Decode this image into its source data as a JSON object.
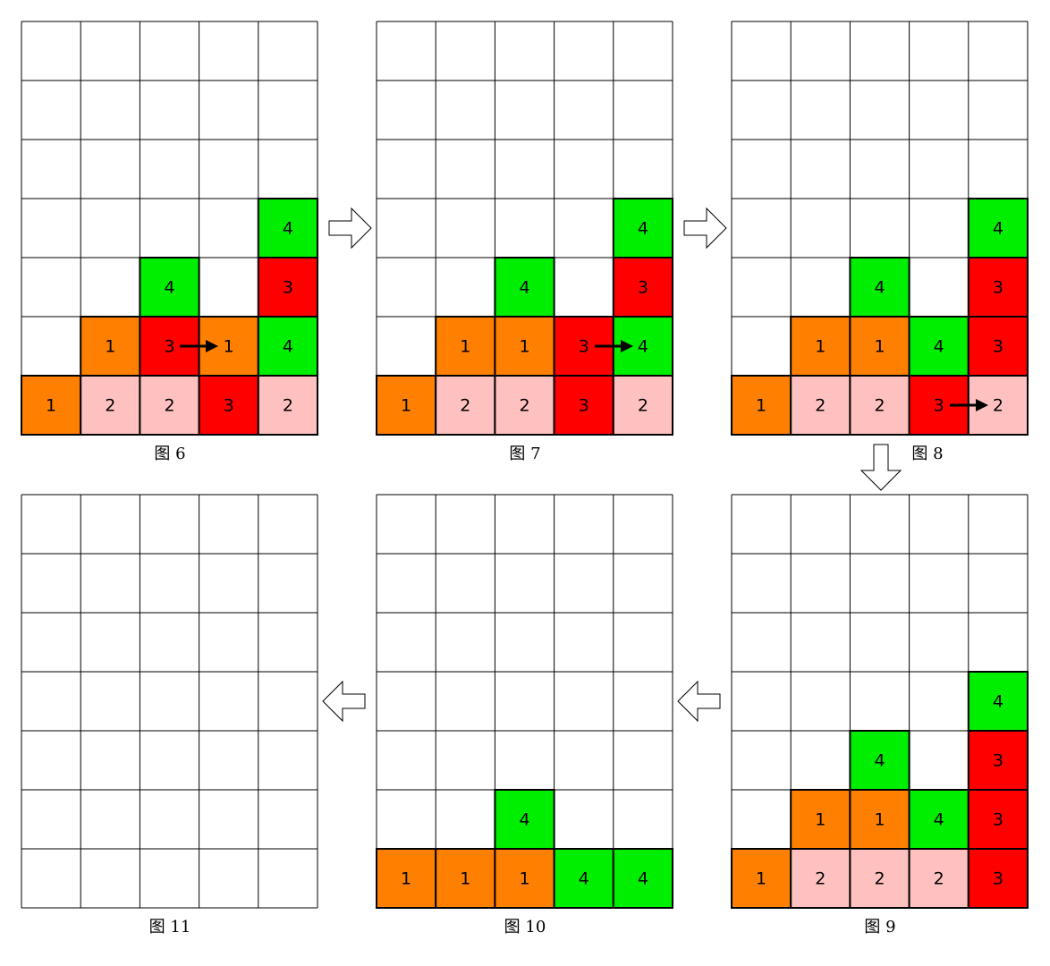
{
  "colors": {
    "1": "#ff8000",
    "2": "#ffc0c0",
    "3": "#ff0000",
    "4": "#00ee00"
  },
  "panels": [
    {
      "caption": "图 6",
      "cells": [
        [
          null,
          null,
          null,
          null,
          null
        ],
        [
          null,
          null,
          null,
          null,
          null
        ],
        [
          null,
          null,
          null,
          null,
          null
        ],
        [
          null,
          null,
          null,
          null,
          4
        ],
        [
          null,
          null,
          4,
          null,
          3
        ],
        [
          null,
          1,
          3,
          1,
          4
        ],
        [
          1,
          2,
          2,
          3,
          2
        ]
      ]
    },
    {
      "caption": "图 7",
      "cells": [
        [
          null,
          null,
          null,
          null,
          null
        ],
        [
          null,
          null,
          null,
          null,
          null
        ],
        [
          null,
          null,
          null,
          null,
          null
        ],
        [
          null,
          null,
          null,
          null,
          4
        ],
        [
          null,
          null,
          4,
          null,
          3
        ],
        [
          null,
          1,
          1,
          3,
          4
        ],
        [
          1,
          2,
          2,
          3,
          2
        ]
      ]
    },
    {
      "caption": "图 8",
      "cells": [
        [
          null,
          null,
          null,
          null,
          null
        ],
        [
          null,
          null,
          null,
          null,
          null
        ],
        [
          null,
          null,
          null,
          null,
          null
        ],
        [
          null,
          null,
          null,
          null,
          4
        ],
        [
          null,
          null,
          4,
          null,
          3
        ],
        [
          null,
          1,
          1,
          4,
          3
        ],
        [
          1,
          2,
          2,
          3,
          2
        ]
      ]
    },
    {
      "caption": "图 9",
      "cells": [
        [
          null,
          null,
          null,
          null,
          null
        ],
        [
          null,
          null,
          null,
          null,
          null
        ],
        [
          null,
          null,
          null,
          null,
          null
        ],
        [
          null,
          null,
          null,
          null,
          4
        ],
        [
          null,
          null,
          4,
          null,
          3
        ],
        [
          null,
          1,
          1,
          4,
          3
        ],
        [
          1,
          2,
          2,
          2,
          3
        ]
      ]
    },
    {
      "caption": "图 10",
      "cells": [
        [
          null,
          null,
          null,
          null,
          null
        ],
        [
          null,
          null,
          null,
          null,
          null
        ],
        [
          null,
          null,
          null,
          null,
          null
        ],
        [
          null,
          null,
          null,
          null,
          null
        ],
        [
          null,
          null,
          null,
          null,
          null
        ],
        [
          null,
          null,
          4,
          null,
          null
        ],
        [
          1,
          1,
          1,
          4,
          4
        ]
      ]
    },
    {
      "caption": "图 11",
      "cells": [
        [
          null,
          null,
          null,
          null,
          null
        ],
        [
          null,
          null,
          null,
          null,
          null
        ],
        [
          null,
          null,
          null,
          null,
          null
        ],
        [
          null,
          null,
          null,
          null,
          null
        ],
        [
          null,
          null,
          null,
          null,
          null
        ],
        [
          null,
          null,
          null,
          null,
          null
        ],
        [
          null,
          null,
          null,
          null,
          null
        ]
      ]
    }
  ]
}
